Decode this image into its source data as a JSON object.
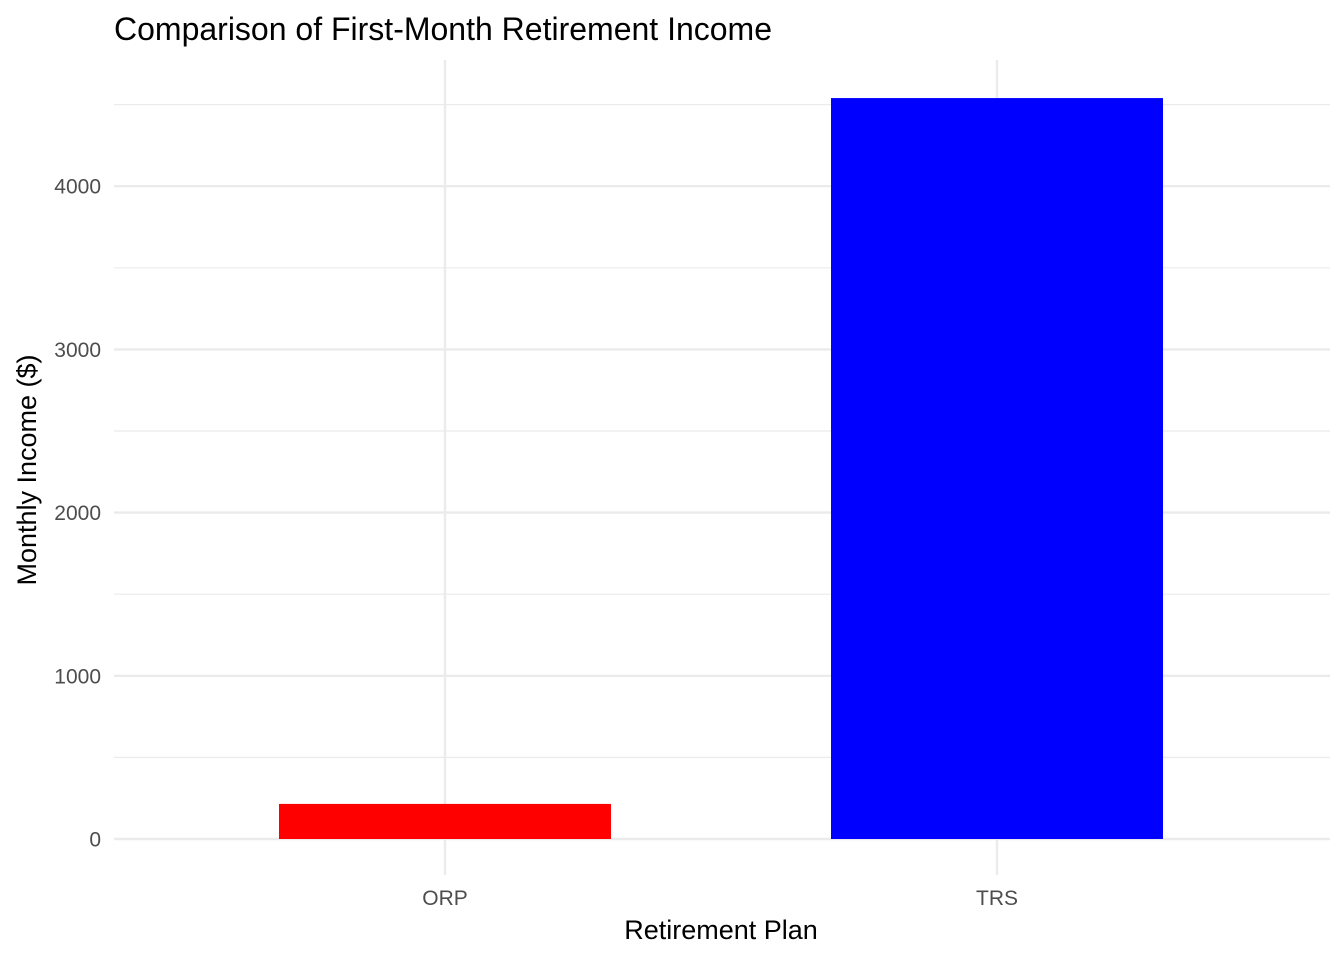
{
  "chart_data": {
    "type": "bar",
    "title": "Comparison of First-Month Retirement Income",
    "xlabel": "Retirement Plan",
    "ylabel": "Monthly Income ($)",
    "categories": [
      "ORP",
      "TRS"
    ],
    "values": [
      215,
      4540
    ],
    "bar_colors": [
      "#ff0000",
      "#0000ff"
    ],
    "ylim": [
      0,
      4765
    ],
    "y_ticks": [
      0,
      1000,
      2000,
      3000,
      4000
    ],
    "y_tick_labels": [
      "0",
      "1000",
      "2000",
      "3000",
      "4000"
    ],
    "grid": true,
    "gridline_color": "#ebebeb",
    "background": "#ffffff",
    "legend": "none"
  }
}
